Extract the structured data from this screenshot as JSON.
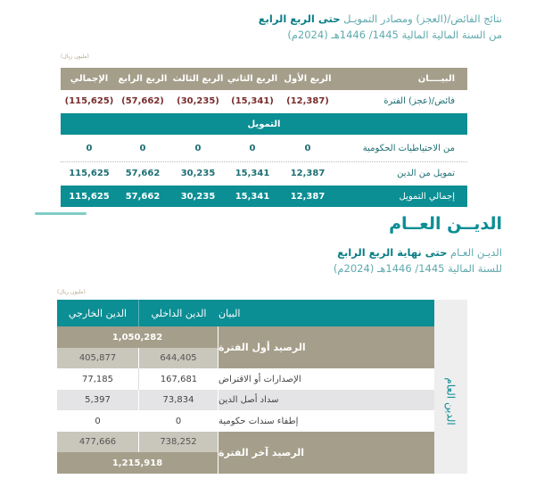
{
  "section1": {
    "title_regular": "نتائج الفائض/(العجز) ومصادر التمويـل ",
    "title_bold": "حتى الربع الرابع",
    "subtitle": "من السنة المالية المالية 1445/ 1446هـ (2024م)",
    "unit": "(مليون ريال)",
    "headers": [
      "البيــــان",
      "الربع الأول",
      "الربع الثاني",
      "الربع الثالث",
      "الربع الرابع",
      "الإجمالي"
    ],
    "rows": [
      {
        "label": "فائض/(عجز) الفترة",
        "values": [
          "(12,387)",
          "(15,341)",
          "(30,235)",
          "(57,662)",
          "(115,625)"
        ]
      },
      {
        "label": "من الاحتياطيات الحكومية",
        "values": [
          "0",
          "0",
          "0",
          "0",
          "0"
        ]
      },
      {
        "label": "تمويل من الدين",
        "values": [
          "12,387",
          "15,341",
          "30,235",
          "57,662",
          "115,625"
        ]
      }
    ],
    "band": "التمويل",
    "total": {
      "label": "إجمالي التمويل",
      "values": [
        "12,387",
        "15,341",
        "30,235",
        "57,662",
        "115,625"
      ]
    }
  },
  "section2": {
    "heading": "الديــن العــام",
    "title_regular": "الديـن العـام ",
    "title_bold": "حتى نهاية الربع الرابع",
    "subtitle": "للسنة المالية 1445/ 1446هـ (2024م)",
    "unit": "(مليون ريال)",
    "side_label": "الدين العام",
    "headers": {
      "label": "البيان",
      "domestic": "الدين الداخلي",
      "external": "الدين الخارجي"
    },
    "opening": {
      "label": "الرصيد أول الفترة",
      "total": "1,050,282",
      "domestic": "644,405",
      "external": "405,877"
    },
    "rows": [
      {
        "label": "الإصدارات أو الاقتراض",
        "domestic": "167,681",
        "external": "77,185"
      },
      {
        "label": "سداد أصل الدين",
        "domestic": "73,834",
        "external": "5,397"
      },
      {
        "label": "إطفاء سندات حكومية",
        "domestic": "0",
        "external": "0"
      }
    ],
    "closing": {
      "label": "الرصيد آخر الفترة",
      "total": "1,215,918",
      "domestic": "738,252",
      "external": "477,666"
    }
  },
  "colors": {
    "teal": "#0b8e94",
    "tan": "#a59e8a",
    "light_tan": "#c9c6bb",
    "gray_row": "#e4e4e6",
    "deficit": "#7a2d2d"
  }
}
